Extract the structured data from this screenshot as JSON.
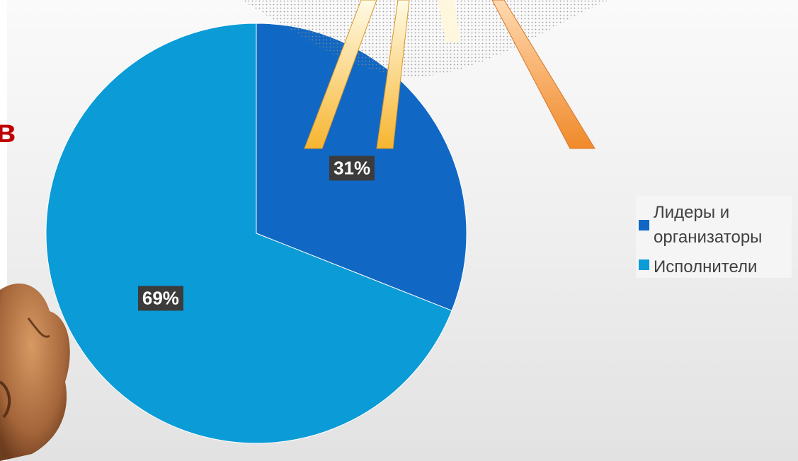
{
  "chart_data": {
    "type": "pie",
    "categories": [
      "Лидеры и организаторы",
      "Исполнители"
    ],
    "values": [
      31,
      69
    ],
    "labels": [
      "31%",
      "69%"
    ],
    "colors": [
      "#1068c4",
      "#0b9bd6"
    ],
    "title": "",
    "legend": {
      "placement": "right",
      "entries": [
        "Лидеры и организаторы",
        "Исполнители"
      ]
    }
  },
  "decorations": {
    "partial_heading_glyph": "в",
    "sunburst": "sunburst-icon",
    "figure": "cartoon-hand-icon"
  }
}
